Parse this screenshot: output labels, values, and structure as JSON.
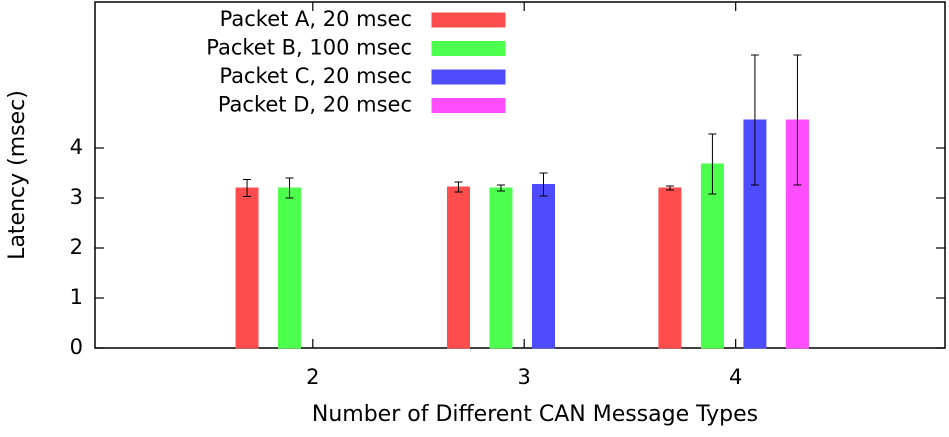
{
  "chart_data": {
    "type": "bar",
    "x_label": "Number of Different CAN Message Types",
    "y_label": "Latency (msec)",
    "x": [
      2,
      3,
      4
    ],
    "xlim": [
      0.97,
      4.99
    ],
    "xticks": [
      2,
      3,
      4
    ],
    "ylim": [
      0,
      6.92
    ],
    "yticks": [
      0,
      1,
      2,
      3,
      4
    ],
    "legend": "top-center",
    "series": [
      {
        "name": "Packet A, 20 msec",
        "color": "#ff4d4d",
        "values": [
          3.2,
          3.22,
          3.2
        ],
        "errors": [
          0.17,
          0.1,
          0.04
        ]
      },
      {
        "name": "Packet B, 100 msec",
        "color": "#4dff4d",
        "values": [
          3.2,
          3.2,
          3.68
        ],
        "errors": [
          0.2,
          0.06,
          0.6
        ]
      },
      {
        "name": "Packet C, 20 msec",
        "color": "#4d4dff",
        "values": [
          null,
          3.27,
          4.56
        ],
        "errors": [
          null,
          0.23,
          1.3
        ]
      },
      {
        "name": "Packet D, 20 msec",
        "color": "#ff4dff",
        "values": [
          null,
          null,
          4.56
        ],
        "errors": [
          null,
          null,
          1.3
        ]
      }
    ]
  }
}
